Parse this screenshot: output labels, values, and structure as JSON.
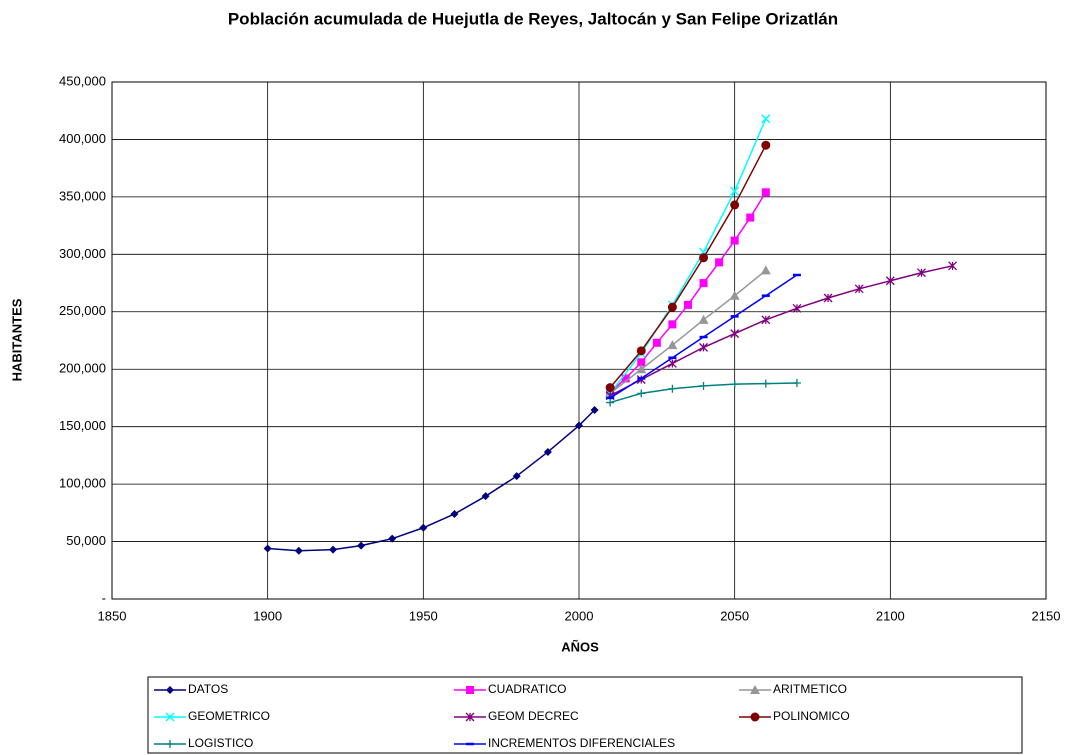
{
  "chart_data": {
    "type": "line",
    "title": "Población acumulada de Huejutla de Reyes,  Jaltocán y San Felipe Orizatlán",
    "x_label": "AÑOS",
    "y_label": "HABITANTES",
    "xlim": [
      1850,
      2150
    ],
    "xticks": [
      1850,
      1900,
      1950,
      2000,
      2050,
      2100,
      2150
    ],
    "ylim": [
      0,
      450000
    ],
    "yticks": [
      {
        "value": 0,
        "label": "-"
      },
      {
        "value": 50000,
        "label": "50,000"
      },
      {
        "value": 100000,
        "label": "100,000"
      },
      {
        "value": 150000,
        "label": "150,000"
      },
      {
        "value": 200000,
        "label": "200,000"
      },
      {
        "value": 250000,
        "label": "250,000"
      },
      {
        "value": 300000,
        "label": "300,000"
      },
      {
        "value": 350000,
        "label": "350,000"
      },
      {
        "value": 400000,
        "label": "400,000"
      },
      {
        "value": 450000,
        "label": "450,000"
      }
    ],
    "grid": true,
    "legend": "bottom",
    "series": [
      {
        "name": "DATOS",
        "color": "#000080",
        "marker": "diamond",
        "x": [
          1900,
          1910,
          1921,
          1930,
          1940,
          1950,
          1960,
          1970,
          1980,
          1990,
          2000,
          2005
        ],
        "values": [
          44000,
          42000,
          43000,
          46500,
          52500,
          62000,
          74000,
          89500,
          107000,
          128000,
          151000,
          164500
        ]
      },
      {
        "name": "CUADRATICO",
        "color": "#ff00ff",
        "marker": "square",
        "x": [
          2010,
          2015,
          2020,
          2025,
          2030,
          2035,
          2040,
          2045,
          2050,
          2055,
          2060
        ],
        "values": [
          180000,
          192000,
          206000,
          223000,
          239000,
          256000,
          275000,
          293000,
          312000,
          332000,
          354000
        ]
      },
      {
        "name": "ARITMETICO",
        "color": "#969696",
        "marker": "triangle",
        "x": [
          2010,
          2020,
          2030,
          2040,
          2050,
          2060
        ],
        "values": [
          179000,
          200000,
          221000,
          243000,
          264000,
          286000
        ]
      },
      {
        "name": "GEOMETRICO",
        "color": "#00ffff",
        "marker": "x",
        "x": [
          2010,
          2020,
          2030,
          2040,
          2050,
          2060
        ],
        "values": [
          179000,
          214000,
          256000,
          302000,
          355000,
          418000
        ]
      },
      {
        "name": "GEOM DECREC",
        "color": "#800080",
        "marker": "star",
        "x": [
          2010,
          2020,
          2030,
          2040,
          2050,
          2060,
          2070,
          2080,
          2090,
          2100,
          2110,
          2120
        ],
        "values": [
          177000,
          191000,
          205000,
          219000,
          231000,
          243000,
          253000,
          262000,
          270000,
          277000,
          284000,
          290000
        ]
      },
      {
        "name": "POLINOMICO",
        "color": "#800000",
        "marker": "circle",
        "x": [
          2010,
          2020,
          2030,
          2040,
          2050,
          2060
        ],
        "values": [
          184000,
          216000,
          254000,
          297000,
          343000,
          395000
        ]
      },
      {
        "name": "LOGISTICO",
        "color": "#008080",
        "marker": "plus",
        "x": [
          2010,
          2020,
          2030,
          2040,
          2050,
          2060,
          2070
        ],
        "values": [
          171000,
          179000,
          183000,
          185500,
          187000,
          187500,
          188000
        ]
      },
      {
        "name": "INCREMENTOS DIFERENCIALES",
        "color": "#0000ff",
        "marker": "dash",
        "x": [
          2010,
          2020,
          2030,
          2040,
          2050,
          2060,
          2070
        ],
        "values": [
          175000,
          192000,
          210000,
          228000,
          246000,
          264000,
          282000
        ]
      }
    ]
  }
}
